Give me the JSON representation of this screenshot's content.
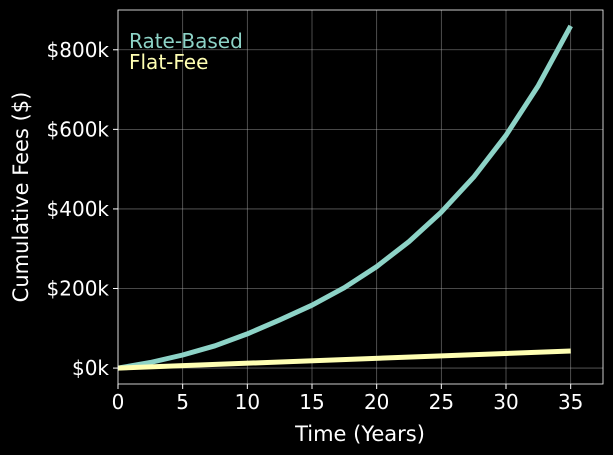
{
  "chart_data": {
    "type": "line",
    "title": "",
    "xlabel": "Time (Years)",
    "ylabel": "Cumulative Fees ($)",
    "xlim": [
      0,
      37.5
    ],
    "ylim": [
      -40000,
      900000
    ],
    "xticks": [
      0,
      5,
      10,
      15,
      20,
      25,
      30,
      35
    ],
    "xtick_labels": [
      "0",
      "5",
      "10",
      "15",
      "20",
      "25",
      "30",
      "35"
    ],
    "yticks": [
      0,
      200000,
      400000,
      600000,
      800000
    ],
    "ytick_labels": [
      "$0k",
      "$200k",
      "$400k",
      "$600k",
      "$800k"
    ],
    "grid": true,
    "legend_position": "top-left",
    "background": "#000000",
    "series": [
      {
        "name": "Rate-Based",
        "color": "#8dd3c7",
        "x": [
          0,
          2.5,
          5,
          7.5,
          10,
          12.5,
          15,
          17.5,
          20,
          22.5,
          25,
          27.5,
          30,
          32.5,
          35
        ],
        "y": [
          0,
          14000,
          33000,
          56000,
          86000,
          121000,
          158000,
          202000,
          255000,
          318000,
          392000,
          480000,
          585000,
          710000,
          860000
        ]
      },
      {
        "name": "Flat-Fee",
        "color": "#ffffb3",
        "x": [
          0,
          35
        ],
        "y": [
          0,
          43000
        ]
      }
    ]
  }
}
